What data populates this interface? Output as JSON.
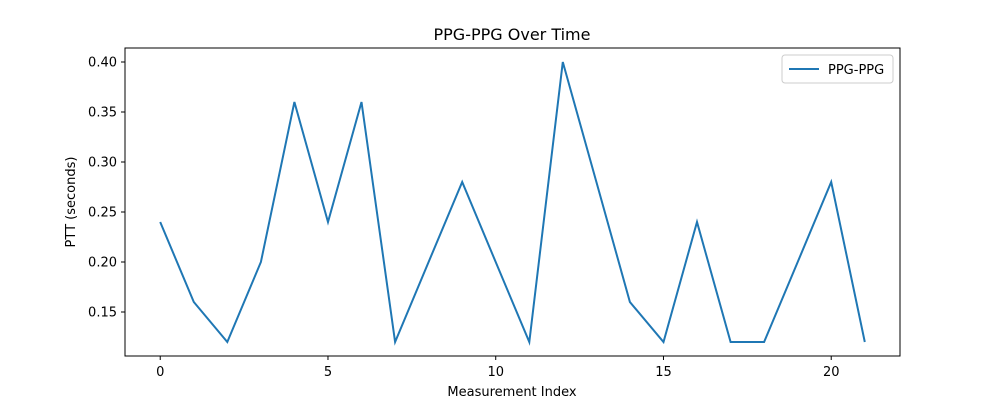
{
  "chart_data": {
    "type": "line",
    "title": "PPG-PPG Over Time",
    "xlabel": "Measurement Index",
    "ylabel": "PTT (seconds)",
    "xlim": [
      -1.05,
      22.05
    ],
    "ylim": [
      0.106,
      0.414
    ],
    "xticks": [
      0,
      5,
      10,
      15,
      20
    ],
    "xtick_labels": [
      "0",
      "5",
      "10",
      "15",
      "20"
    ],
    "yticks": [
      0.15,
      0.2,
      0.25,
      0.3,
      0.35,
      0.4
    ],
    "ytick_labels": [
      "0.15",
      "0.20",
      "0.25",
      "0.30",
      "0.35",
      "0.40"
    ],
    "grid": false,
    "legend_position": "top-right",
    "series": [
      {
        "name": "PPG-PPG",
        "color": "#1f77b4",
        "x": [
          0,
          1,
          2,
          3,
          4,
          5,
          6,
          7,
          8,
          9,
          10,
          11,
          12,
          13,
          14,
          15,
          16,
          17,
          18,
          19,
          20,
          21
        ],
        "y": [
          0.24,
          0.16,
          0.12,
          0.2,
          0.36,
          0.24,
          0.36,
          0.12,
          0.2,
          0.28,
          0.2,
          0.12,
          0.4,
          0.28,
          0.16,
          0.12,
          0.24,
          0.12,
          0.12,
          0.2,
          0.28,
          0.12
        ]
      }
    ]
  }
}
